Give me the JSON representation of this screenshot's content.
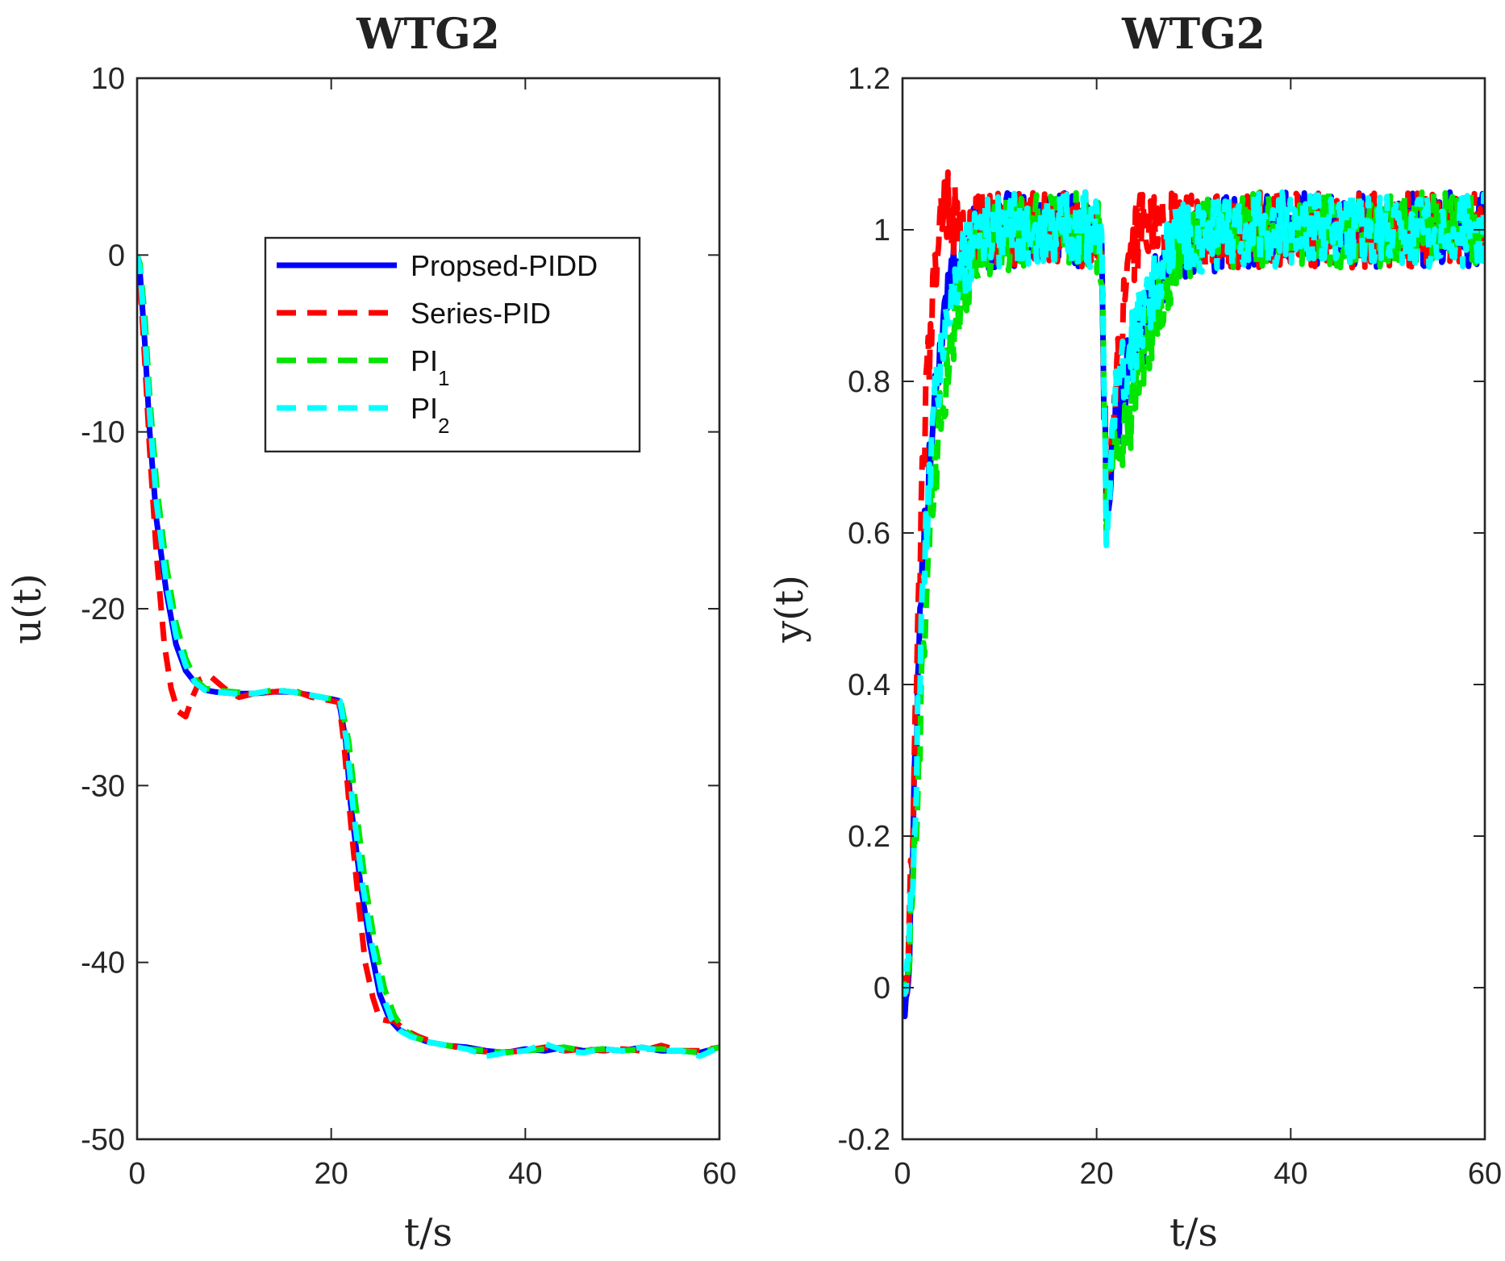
{
  "chart_data": [
    {
      "type": "line",
      "title": "WTG2",
      "xlabel": "t/s",
      "ylabel": "u(t)",
      "xlim": [
        0,
        60
      ],
      "ylim": [
        -50,
        10
      ],
      "xticks": [
        "0",
        "20",
        "40",
        "60"
      ],
      "yticks": [
        "10",
        "0",
        "-10",
        "-20",
        "-30",
        "-40",
        "-50"
      ],
      "legend": {
        "position": "upper-middle",
        "entries": [
          {
            "label": "Propsed-PIDD",
            "base": "Propsed-PIDD",
            "sub": ""
          },
          {
            "label": "Series-PID",
            "base": "Series-PID",
            "sub": ""
          },
          {
            "label": "PI1",
            "base": "PI",
            "sub": "1"
          },
          {
            "label": "PI2",
            "base": "PI",
            "sub": "2"
          }
        ]
      },
      "series": [
        {
          "name": "Propsed-PIDD",
          "color": "#0000ff",
          "style": "solid",
          "x": [
            0,
            0.3,
            0.8,
            1.3,
            2,
            3,
            4,
            5,
            6,
            7,
            8,
            10,
            12,
            14,
            16,
            18,
            20,
            20.8,
            21.5,
            22,
            23,
            24,
            25,
            26,
            27,
            28,
            30,
            32,
            34,
            36,
            38,
            40,
            42,
            44,
            46,
            48,
            50,
            52,
            54,
            56,
            58,
            60
          ],
          "y": [
            0,
            -1,
            -5,
            -10,
            -15,
            -19,
            -22,
            -23.5,
            -24.2,
            -24.6,
            -24.7,
            -24.8,
            -24.8,
            -24.7,
            -24.7,
            -24.9,
            -25.1,
            -25.2,
            -27.5,
            -31,
            -35.5,
            -39,
            -41.8,
            -43.2,
            -43.8,
            -44.1,
            -44.5,
            -44.7,
            -44.8,
            -45,
            -45.1,
            -44.9,
            -45,
            -44.8,
            -45,
            -44.9,
            -45,
            -44.8,
            -45,
            -45,
            -45.1,
            -44.8
          ]
        },
        {
          "name": "Series-PID",
          "color": "#ff0000",
          "style": "dashed",
          "x": [
            0,
            0.3,
            0.8,
            1.3,
            2,
            2.8,
            3.5,
            4.2,
            5,
            5.7,
            6.5,
            7.5,
            9,
            10.5,
            12,
            14,
            16,
            18,
            20,
            20.8,
            21.3,
            22,
            22.8,
            23.5,
            24.3,
            25,
            25.8,
            26.5,
            27.5,
            29,
            31,
            33,
            35,
            37,
            40,
            42,
            44,
            46,
            48,
            50,
            52,
            54,
            56,
            58,
            60
          ],
          "y": [
            0,
            -1.5,
            -6,
            -11,
            -17,
            -22,
            -24.5,
            -25.8,
            -26.1,
            -25,
            -24,
            -23.8,
            -24.5,
            -25,
            -24.8,
            -24.7,
            -24.6,
            -25,
            -25.2,
            -25.3,
            -27.5,
            -32,
            -36.5,
            -40,
            -42,
            -43.2,
            -43.3,
            -43.3,
            -43.8,
            -44.2,
            -44.6,
            -44.8,
            -45,
            -45.1,
            -45,
            -44.8,
            -45,
            -44.9,
            -45,
            -44.9,
            -45,
            -44.7,
            -45,
            -45,
            -44.8
          ]
        },
        {
          "name": "PI1",
          "color": "#00e600",
          "style": "dashed",
          "x": [
            0,
            0.3,
            0.8,
            1.3,
            2,
            3,
            4,
            5,
            6,
            7,
            8,
            10,
            12,
            14,
            16,
            18,
            20,
            21,
            21.8,
            22.5,
            23.5,
            24.5,
            25.5,
            26.5,
            27.5,
            28.5,
            30,
            32,
            34,
            36,
            38,
            40,
            42,
            44,
            46,
            48,
            50,
            52,
            54,
            56,
            58,
            60
          ],
          "y": [
            0,
            -0.5,
            -3.5,
            -8,
            -13,
            -17.5,
            -20.8,
            -22.8,
            -24,
            -24.5,
            -24.6,
            -24.7,
            -24.8,
            -24.6,
            -24.7,
            -24.9,
            -25.1,
            -25.3,
            -27.5,
            -31,
            -35.5,
            -39,
            -41.5,
            -43,
            -43.8,
            -44.2,
            -44.5,
            -44.7,
            -44.9,
            -45,
            -45.1,
            -45,
            -44.9,
            -44.8,
            -45,
            -44.9,
            -45,
            -44.9,
            -44.9,
            -45,
            -45.1,
            -44.8
          ]
        },
        {
          "name": "PI2",
          "color": "#00ffff",
          "style": "dashed",
          "x": [
            0,
            0.3,
            0.8,
            1.3,
            2,
            3,
            4,
            5,
            6,
            7,
            8,
            10,
            12,
            14,
            16,
            18,
            20,
            20.9,
            21.6,
            22.2,
            23.2,
            24.2,
            25.2,
            26.2,
            27.2,
            28.2,
            30,
            32,
            34,
            36,
            38,
            40,
            42,
            44,
            46,
            48,
            50,
            52,
            54,
            56,
            58,
            60
          ],
          "y": [
            0,
            -0.8,
            -4.5,
            -9,
            -14,
            -18.5,
            -21.5,
            -23.2,
            -24.2,
            -24.6,
            -24.7,
            -24.8,
            -24.8,
            -24.6,
            -24.7,
            -24.9,
            -25.1,
            -25.2,
            -27.5,
            -31,
            -35.5,
            -39,
            -41.7,
            -43.2,
            -43.9,
            -44.2,
            -44.5,
            -44.7,
            -44.9,
            -45.3,
            -45.1,
            -45,
            -44.6,
            -45,
            -45.1,
            -44.9,
            -45,
            -44.8,
            -45,
            -45,
            -45.3,
            -44.8
          ]
        }
      ]
    },
    {
      "type": "line",
      "title": "WTG2",
      "xlabel": "t/s",
      "ylabel": "y(t)",
      "xlim": [
        0,
        60
      ],
      "ylim": [
        -0.2,
        1.2
      ],
      "xticks": [
        "0",
        "20",
        "40",
        "60"
      ],
      "yticks": [
        "1.2",
        "1",
        "0.8",
        "0.6",
        "0.4",
        "0.2",
        "0",
        "-0.2"
      ],
      "noise_amplitude": 0.05,
      "series": [
        {
          "name": "Propsed-PIDD",
          "color": "#0000ff",
          "style": "solid",
          "x": [
            0,
            0.5,
            1,
            1.5,
            2,
            2.5,
            3,
            3.5,
            4,
            4.5,
            5,
            6,
            7,
            8,
            10,
            12,
            14,
            16,
            18,
            19.5,
            20.5,
            21,
            21.5,
            22,
            23,
            24,
            25,
            26,
            27,
            28,
            30,
            35,
            40,
            45,
            50,
            55,
            60
          ],
          "y": [
            0,
            -0.02,
            0.15,
            0.35,
            0.52,
            0.65,
            0.74,
            0.81,
            0.86,
            0.9,
            0.93,
            0.96,
            0.98,
            0.99,
            1,
            1,
            1,
            1,
            1,
            1,
            0.98,
            0.62,
            0.7,
            0.75,
            0.8,
            0.84,
            0.88,
            0.92,
            0.95,
            0.97,
            0.99,
            1,
            1,
            1,
            1,
            1,
            1
          ]
        },
        {
          "name": "Series-PID",
          "color": "#ff0000",
          "style": "dashed",
          "x": [
            0,
            0.5,
            1,
            1.5,
            2,
            2.5,
            3,
            3.5,
            4,
            4.5,
            5,
            6,
            7,
            8,
            10,
            12,
            14,
            16,
            18,
            19.5,
            20.5,
            21,
            21.5,
            22,
            23,
            24,
            25,
            26,
            27,
            28,
            30,
            35,
            40,
            45,
            50,
            55,
            60
          ],
          "y": [
            0,
            0.02,
            0.2,
            0.45,
            0.65,
            0.79,
            0.89,
            0.96,
            1.01,
            1.03,
            1.02,
            1,
            0.99,
            1,
            1,
            1,
            1,
            1,
            1,
            1,
            0.99,
            0.65,
            0.7,
            0.8,
            0.92,
            0.99,
            1.02,
            1.01,
            1,
            1,
            1,
            1,
            1,
            1,
            1,
            1,
            1
          ]
        },
        {
          "name": "PI1",
          "color": "#00e600",
          "style": "dashed",
          "x": [
            0,
            0.5,
            1,
            1.5,
            2,
            2.5,
            3,
            3.5,
            4,
            4.5,
            5,
            6,
            7,
            8,
            10,
            12,
            14,
            16,
            18,
            19.5,
            20.5,
            21,
            21.5,
            22,
            23,
            24,
            25,
            26,
            27,
            28,
            30,
            35,
            40,
            45,
            50,
            55,
            60
          ],
          "y": [
            0,
            0.02,
            0.1,
            0.25,
            0.4,
            0.52,
            0.62,
            0.7,
            0.76,
            0.81,
            0.85,
            0.91,
            0.95,
            0.97,
            0.99,
            1,
            1,
            1,
            1,
            1,
            0.98,
            0.6,
            0.66,
            0.7,
            0.74,
            0.78,
            0.84,
            0.89,
            0.93,
            0.96,
            0.99,
            1,
            1,
            1,
            1,
            1,
            1
          ]
        },
        {
          "name": "PI2",
          "color": "#00ffff",
          "style": "dashed",
          "x": [
            0,
            0.5,
            1,
            1.5,
            2,
            2.5,
            3,
            3.5,
            4,
            4.5,
            5,
            6,
            7,
            8,
            10,
            12,
            14,
            16,
            18,
            19.5,
            20.5,
            21,
            21.5,
            22,
            23,
            24,
            25,
            26,
            27,
            28,
            30,
            35,
            40,
            45,
            50,
            55,
            60
          ],
          "y": [
            0,
            0.03,
            0.14,
            0.32,
            0.48,
            0.6,
            0.7,
            0.78,
            0.84,
            0.88,
            0.91,
            0.95,
            0.97,
            0.99,
            1,
            1,
            1,
            1,
            1,
            1,
            0.98,
            0.6,
            0.72,
            0.78,
            0.82,
            0.86,
            0.9,
            0.93,
            0.96,
            0.98,
            0.99,
            1,
            1,
            1,
            1,
            1,
            1
          ]
        }
      ]
    }
  ]
}
